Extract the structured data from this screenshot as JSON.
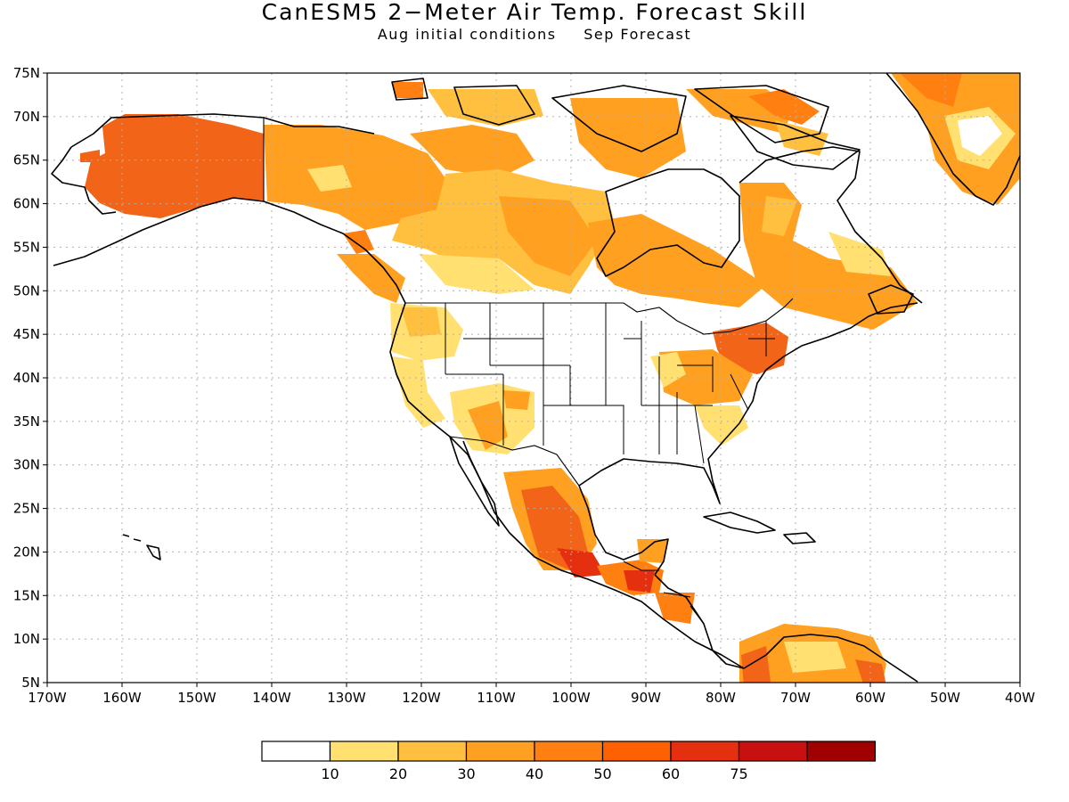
{
  "title": "CanESM5 2−Meter Air Temp. Forecast Skill",
  "subtitle_left": "Aug initial conditions",
  "subtitle_right": "Sep Forecast",
  "map": {
    "region": "North America",
    "lon_range": [
      -170,
      -40
    ],
    "lat_range": [
      5,
      75
    ],
    "lat_ticks": [
      "5N",
      "10N",
      "15N",
      "20N",
      "25N",
      "30N",
      "35N",
      "40N",
      "45N",
      "50N",
      "55N",
      "60N",
      "65N",
      "70N",
      "75N"
    ],
    "lon_ticks": [
      "170W",
      "160W",
      "150W",
      "140W",
      "130W",
      "120W",
      "110W",
      "100W",
      "90W",
      "80W",
      "70W",
      "60W",
      "50W",
      "40W"
    ],
    "gridlines": "dotted"
  },
  "colorbar": {
    "colors": [
      "#ffffff",
      "#ffe070",
      "#ffc040",
      "#ffa020",
      "#ff8010",
      "#ff6000",
      "#e53010",
      "#c81010",
      "#a00000"
    ],
    "labels": [
      "10",
      "20",
      "30",
      "40",
      "50",
      "60",
      "75"
    ]
  }
}
